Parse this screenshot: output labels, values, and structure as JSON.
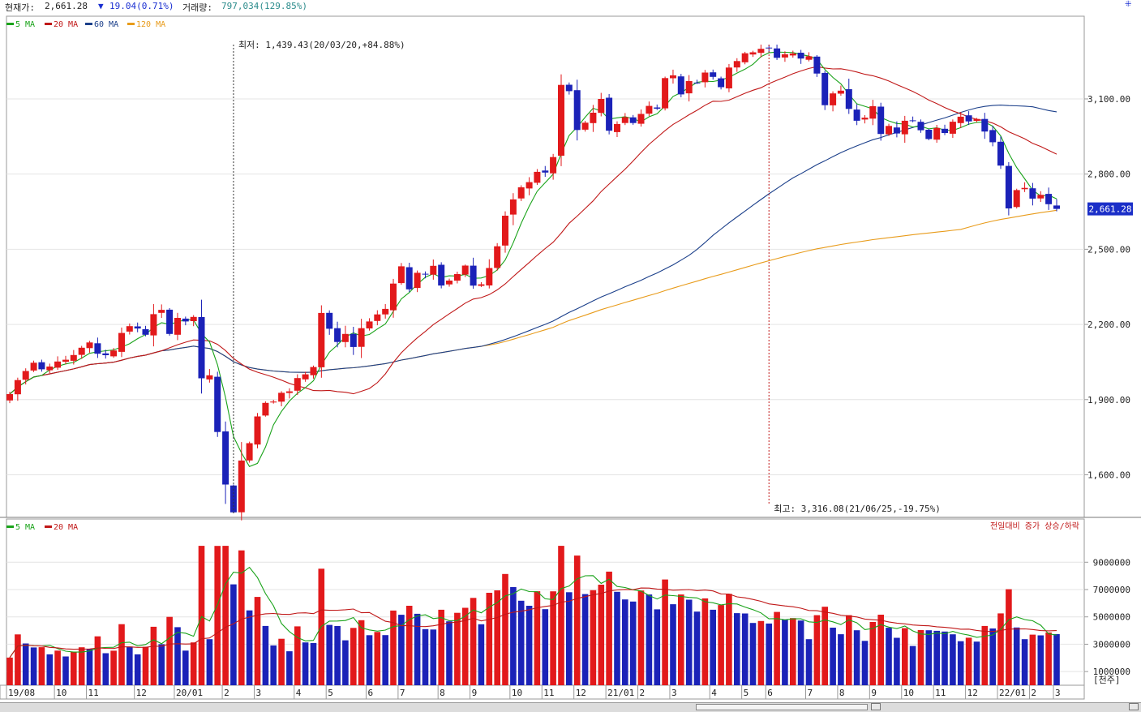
{
  "header": {
    "price_label": "현재가:",
    "price_value": "2,661.28",
    "change_arrow": "▼",
    "change_value": "19.04(0.71%)",
    "volume_label": "거래량:",
    "volume_value": "797,034(129.85%)"
  },
  "colors": {
    "up": "#e2191b",
    "down": "#1b22b8",
    "ma5": "#1aa31a",
    "ma20": "#c01818",
    "ma60": "#1b3f8a",
    "ma120": "#e89b1a",
    "grid": "#e4e4e4",
    "axis": "#9a9a9a"
  },
  "chart_data": [
    {
      "type": "candlestick",
      "period": "weekly",
      "legend": [
        "5 MA",
        "20 MA",
        "60 MA",
        "120 MA"
      ],
      "yticks": [
        "3,100.00",
        "2,800.00",
        "2,500.00",
        "2,200.00",
        "1,900.00",
        "1,600.00"
      ],
      "ylim": [
        1430,
        3430
      ],
      "xticks": [
        "19/08",
        "10",
        "11",
        "12",
        "20/01",
        "2",
        "3",
        "4",
        "5",
        "6",
        "7",
        "8",
        "9",
        "10",
        "11",
        "12",
        "21/01",
        "2",
        "3",
        "4",
        "5",
        "6",
        "7",
        "8",
        "9",
        "10",
        "11",
        "12",
        "22/01",
        "2",
        "3"
      ],
      "last_price_label": "2,661.28",
      "annotations": {
        "low": "최저: 1,439.43(20/03/20,+84.88%)",
        "high": "최고: 3,316.08(21/06/25,-19.75%)"
      },
      "close": [
        1922,
        1978,
        2014,
        2047,
        2021,
        2032,
        2052,
        2059,
        2078,
        2107,
        2128,
        2083,
        2077,
        2096,
        2166,
        2193,
        2184,
        2159,
        2241,
        2258,
        2162,
        2226,
        2212,
        2230,
        1985,
        1997,
        1771,
        1561,
        1450,
        1657,
        1726,
        1833,
        1887,
        1892,
        1927,
        1933,
        1986,
        2001,
        2030,
        2246,
        2183,
        2130,
        2162,
        2110,
        2185,
        2212,
        2240,
        2262,
        2363,
        2432,
        2340,
        2406,
        2401,
        2434,
        2355,
        2375,
        2401,
        2435,
        2355,
        2360,
        2425,
        2512,
        2634,
        2699,
        2747,
        2768,
        2809,
        2806,
        2868,
        3156,
        3131,
        2976,
        3005,
        3045,
        3100,
        2973,
        3000,
        3027,
        3004,
        3040,
        3072,
        3061,
        3183,
        3194,
        3118,
        3171,
        3165,
        3205,
        3188,
        3147,
        3225,
        3251,
        3282,
        3286,
        3300,
        3302,
        3264,
        3278,
        3281,
        3261,
        3270,
        3201,
        3075,
        3122,
        3133,
        3060,
        3013,
        3025,
        3071,
        2960,
        2992,
        2962,
        3013,
        3013,
        2975,
        2940,
        2984,
        2964,
        3009,
        3029,
        3010,
        3020,
        2970,
        2927,
        2834,
        2663,
        2736,
        2745,
        2702,
        2717,
        2680,
        2661
      ],
      "ohlc_note": "open/high/low derived in script"
    },
    {
      "type": "bar",
      "title": "volume",
      "legend": [
        "5 MA",
        "20 MA"
      ],
      "legend_right": "전일대비 증가 상승/하락",
      "yticks": [
        "9000000",
        "7000000",
        "5000000",
        "3000000",
        "1000000"
      ],
      "ylim": [
        0,
        10500000
      ],
      "unit_label": "[천주]"
    }
  ]
}
